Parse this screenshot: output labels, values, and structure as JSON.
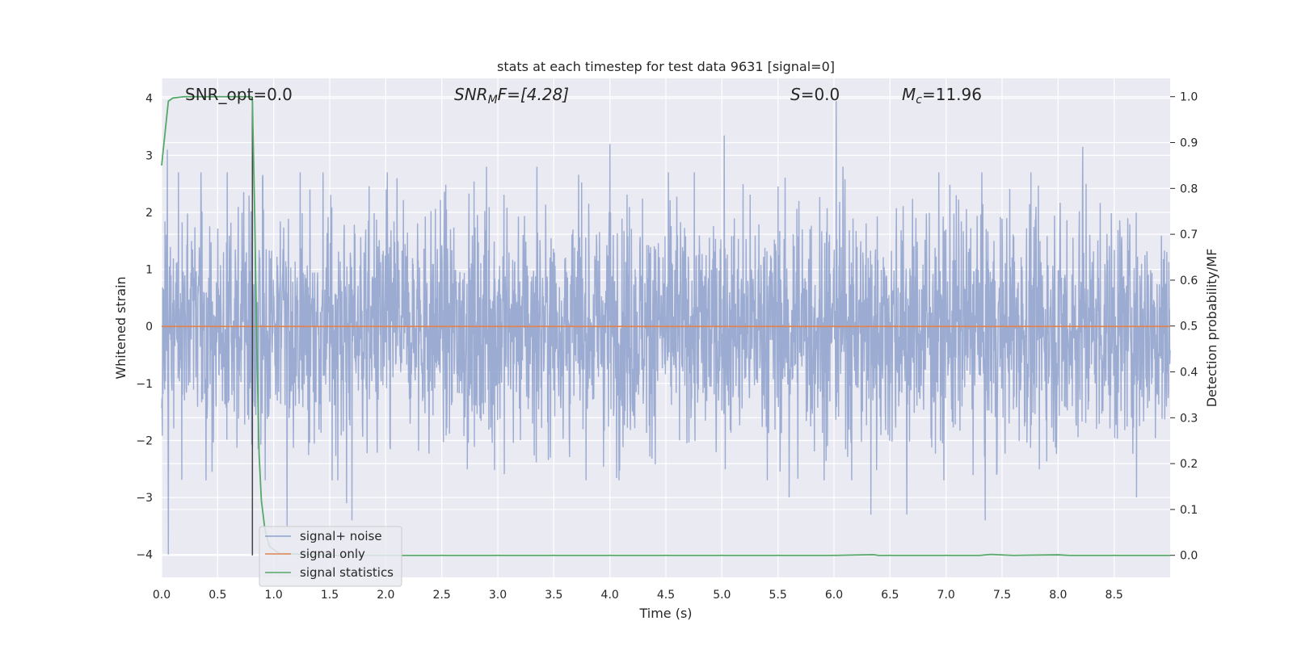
{
  "chart_data": {
    "type": "line",
    "title": "stats at each timestep for test data 9631 [signal=0]",
    "xlabel": "Time (s)",
    "ylabel": "Whitened strain",
    "y2label": "Detection probability/MF",
    "xlim": [
      0.0,
      9.0
    ],
    "ylim": [
      -4.4,
      4.35
    ],
    "y2lim": [
      -0.048,
      1.04
    ],
    "xticks": [
      0.0,
      0.5,
      1.0,
      1.5,
      2.0,
      2.5,
      3.0,
      3.5,
      4.0,
      4.5,
      5.0,
      5.5,
      6.0,
      6.5,
      7.0,
      7.5,
      8.0,
      8.5
    ],
    "xtick_labels": [
      "0.0",
      "0.5",
      "1.0",
      "1.5",
      "2.0",
      "2.5",
      "3.0",
      "3.5",
      "4.0",
      "4.5",
      "5.0",
      "5.5",
      "6.0",
      "6.5",
      "7.0",
      "7.5",
      "8.0",
      "8.5"
    ],
    "yticks": [
      4,
      3,
      2,
      1,
      0,
      -1,
      -2,
      -3,
      -4
    ],
    "ytick_labels": [
      "4",
      "3",
      "2",
      "1",
      "0",
      "−1",
      "−2",
      "−3",
      "−4"
    ],
    "y2ticks": [
      1.0,
      0.9,
      0.8,
      0.7,
      0.6,
      0.5,
      0.4,
      0.3,
      0.2,
      0.1,
      0.0
    ],
    "y2tick_labels": [
      "1.0",
      "0.9",
      "0.8",
      "0.7",
      "0.6",
      "0.5",
      "0.4",
      "0.3",
      "0.2",
      "0.1",
      "0.0"
    ],
    "grid": true,
    "legend_position": "lower-left",
    "colors": {
      "background": "#eaeaf2",
      "grid": "#ffffff",
      "noise": "#8da0cb",
      "signal": "#dd8452",
      "stats": "#55a868",
      "marker": "#444444"
    },
    "annotations": {
      "snr_opt": "SNR_opt=0.0",
      "snr_mf_base": "SNR",
      "snr_mf_sub": "M",
      "snr_mf_rest": "F=[4.28]",
      "s_label": "S",
      "s_rest": "=0.0",
      "mc_base": "M",
      "mc_sub": "c",
      "mc_rest": "=11.96"
    },
    "marker_x": 0.81,
    "series": [
      {
        "name": "signal+ noise",
        "axis": "left",
        "style": "noise",
        "envelope": "dense oscillation roughly between -2.5 and 2.5",
        "spikes": [
          [
            0.05,
            3.1
          ],
          [
            0.06,
            -4.0
          ],
          [
            0.35,
            2.7
          ],
          [
            0.9,
            2.6
          ],
          [
            1.12,
            -3.5
          ],
          [
            1.65,
            -3.1
          ],
          [
            1.7,
            -3.4
          ],
          [
            2.1,
            2.6
          ],
          [
            2.9,
            2.8
          ],
          [
            3.35,
            2.8
          ],
          [
            4.0,
            3.2
          ],
          [
            5.02,
            3.35
          ],
          [
            5.6,
            -3.0
          ],
          [
            6.02,
            3.95
          ],
          [
            6.08,
            2.8
          ],
          [
            6.33,
            -3.3
          ],
          [
            6.65,
            -3.3
          ],
          [
            7.35,
            -3.4
          ],
          [
            7.45,
            -2.6
          ],
          [
            8.22,
            3.15
          ],
          [
            8.7,
            -3.0
          ]
        ]
      },
      {
        "name": "signal only",
        "axis": "left",
        "style": "signal",
        "x": [
          0.0,
          9.0
        ],
        "y": [
          0.0,
          0.0
        ]
      },
      {
        "name": "signal statistics",
        "axis": "right",
        "style": "stats",
        "x": [
          0.0,
          0.03,
          0.06,
          0.1,
          0.2,
          0.4,
          0.6,
          0.8,
          0.81,
          0.83,
          0.85,
          0.87,
          0.89,
          0.92,
          0.96,
          1.05,
          1.5,
          3.0,
          6.0,
          6.35,
          6.4,
          7.3,
          7.4,
          7.6,
          8.0,
          8.1,
          9.0
        ],
        "y": [
          0.85,
          0.92,
          0.99,
          0.997,
          1.0,
          1.0,
          1.0,
          1.0,
          0.99,
          0.75,
          0.45,
          0.22,
          0.12,
          0.06,
          0.02,
          0.004,
          0.0,
          0.0,
          0.0,
          0.0015,
          0.0,
          0.0,
          0.002,
          0.0,
          0.0012,
          0.0,
          0.0
        ]
      }
    ]
  }
}
